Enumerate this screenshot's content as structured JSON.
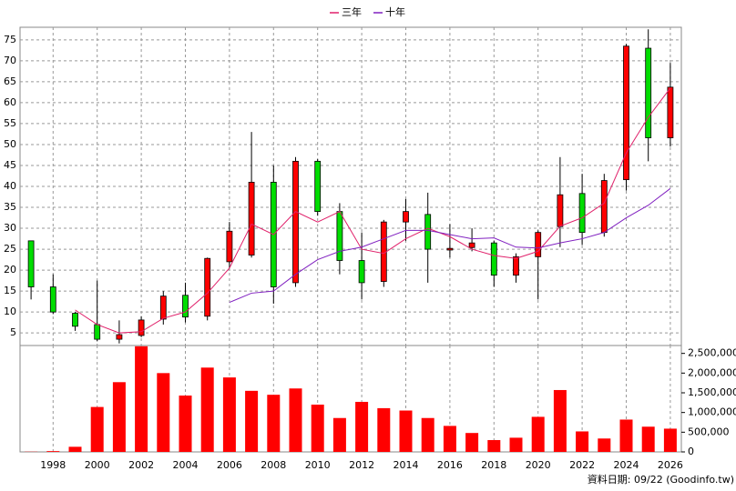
{
  "chart_data": [
    {
      "type": "candlestick",
      "open": [
        27,
        16,
        9.7,
        7,
        3.5,
        4.4,
        8.3,
        14,
        9,
        22,
        23.6,
        41,
        17,
        46,
        34,
        22.3,
        17.3,
        31.5,
        33.3,
        24.8,
        25.4,
        26.5,
        18.8,
        23.2,
        30.4,
        38.3,
        29,
        41.6,
        73,
        51.6
      ],
      "high": [
        27,
        19,
        10,
        17.5,
        8,
        9,
        15,
        17,
        23,
        31.5,
        53,
        45,
        47,
        46.5,
        36,
        29,
        32,
        37,
        38.5,
        31,
        30,
        27,
        24,
        29.5,
        47,
        43,
        43,
        74,
        77.5,
        69.5
      ],
      "low": [
        13,
        9.5,
        5.5,
        3,
        2.5,
        4,
        7,
        7.5,
        8,
        20.5,
        23,
        12,
        16,
        33,
        19,
        13,
        16,
        27,
        17,
        23,
        24.5,
        16,
        17,
        13,
        25.5,
        26,
        28,
        39,
        46,
        49.5
      ],
      "close": [
        16,
        10,
        6.6,
        3.5,
        4.6,
        8.1,
        13.8,
        8.8,
        22.8,
        29.3,
        41,
        16,
        46,
        34,
        22.3,
        17,
        31.5,
        34,
        25,
        25.2,
        26.5,
        18.8,
        23.2,
        29,
        38,
        29,
        41.4,
        73.5,
        51.6,
        63.7
      ],
      "up_color": "#ff0000",
      "down_color": "#00dd00",
      "series": [
        {
          "name": "三年",
          "color": "#e0206a",
          "values": [
            null,
            null,
            10.5,
            7,
            5,
            5.3,
            8.5,
            10,
            14.5,
            20.5,
            31,
            28.5,
            34,
            31.5,
            34,
            25,
            24,
            27.5,
            30,
            28,
            25,
            23.5,
            22.8,
            24.5,
            30.5,
            32.5,
            36,
            48,
            56.5,
            63.5
          ]
        },
        {
          "name": "十年",
          "color": "#8020c0",
          "values": [
            null,
            null,
            null,
            null,
            null,
            null,
            null,
            null,
            null,
            12.3,
            14.5,
            15,
            19,
            22.5,
            24.5,
            25.5,
            27.5,
            29.5,
            29.5,
            28.5,
            27.5,
            27.7,
            25.5,
            25.3,
            26.5,
            27.5,
            29,
            32.5,
            35.5,
            39.5
          ]
        }
      ],
      "ylim": [
        2,
        78
      ],
      "yticks": [
        5,
        10,
        15,
        20,
        25,
        30,
        35,
        40,
        45,
        50,
        55,
        60,
        65,
        70,
        75
      ],
      "grid": true
    },
    {
      "type": "bar",
      "categories": [
        null,
        "1998",
        null,
        "2000",
        null,
        "2002",
        null,
        "2004",
        null,
        "2006",
        null,
        "2008",
        null,
        "2010",
        null,
        "2012",
        null,
        "2014",
        null,
        "2016",
        null,
        "2018",
        null,
        "2020",
        null,
        "2022",
        null,
        "2024",
        null,
        "2026"
      ],
      "values": [
        5000,
        20000,
        130000,
        1140000,
        1770000,
        2680000,
        2000000,
        1430000,
        2140000,
        1890000,
        1550000,
        1450000,
        1610000,
        1200000,
        860000,
        1270000,
        1110000,
        1050000,
        860000,
        660000,
        480000,
        300000,
        360000,
        890000,
        1570000,
        520000,
        340000,
        820000,
        640000,
        590000
      ],
      "color": "#ff0000",
      "ylim": [
        0,
        2700000
      ],
      "yticks": [
        0,
        {
          "value": 500000,
          "label": "500,000"
        },
        {
          "value": 1000000,
          "label": "1,000,000"
        },
        {
          "value": 1500000,
          "label": "1,500,000"
        },
        {
          "value": 2000000,
          "label": "2,000,000"
        },
        {
          "value": 2500000,
          "label": "2,500,000"
        }
      ],
      "grid": true,
      "note": "資料日期: 09/22 (Goodinfo.tw)"
    }
  ]
}
